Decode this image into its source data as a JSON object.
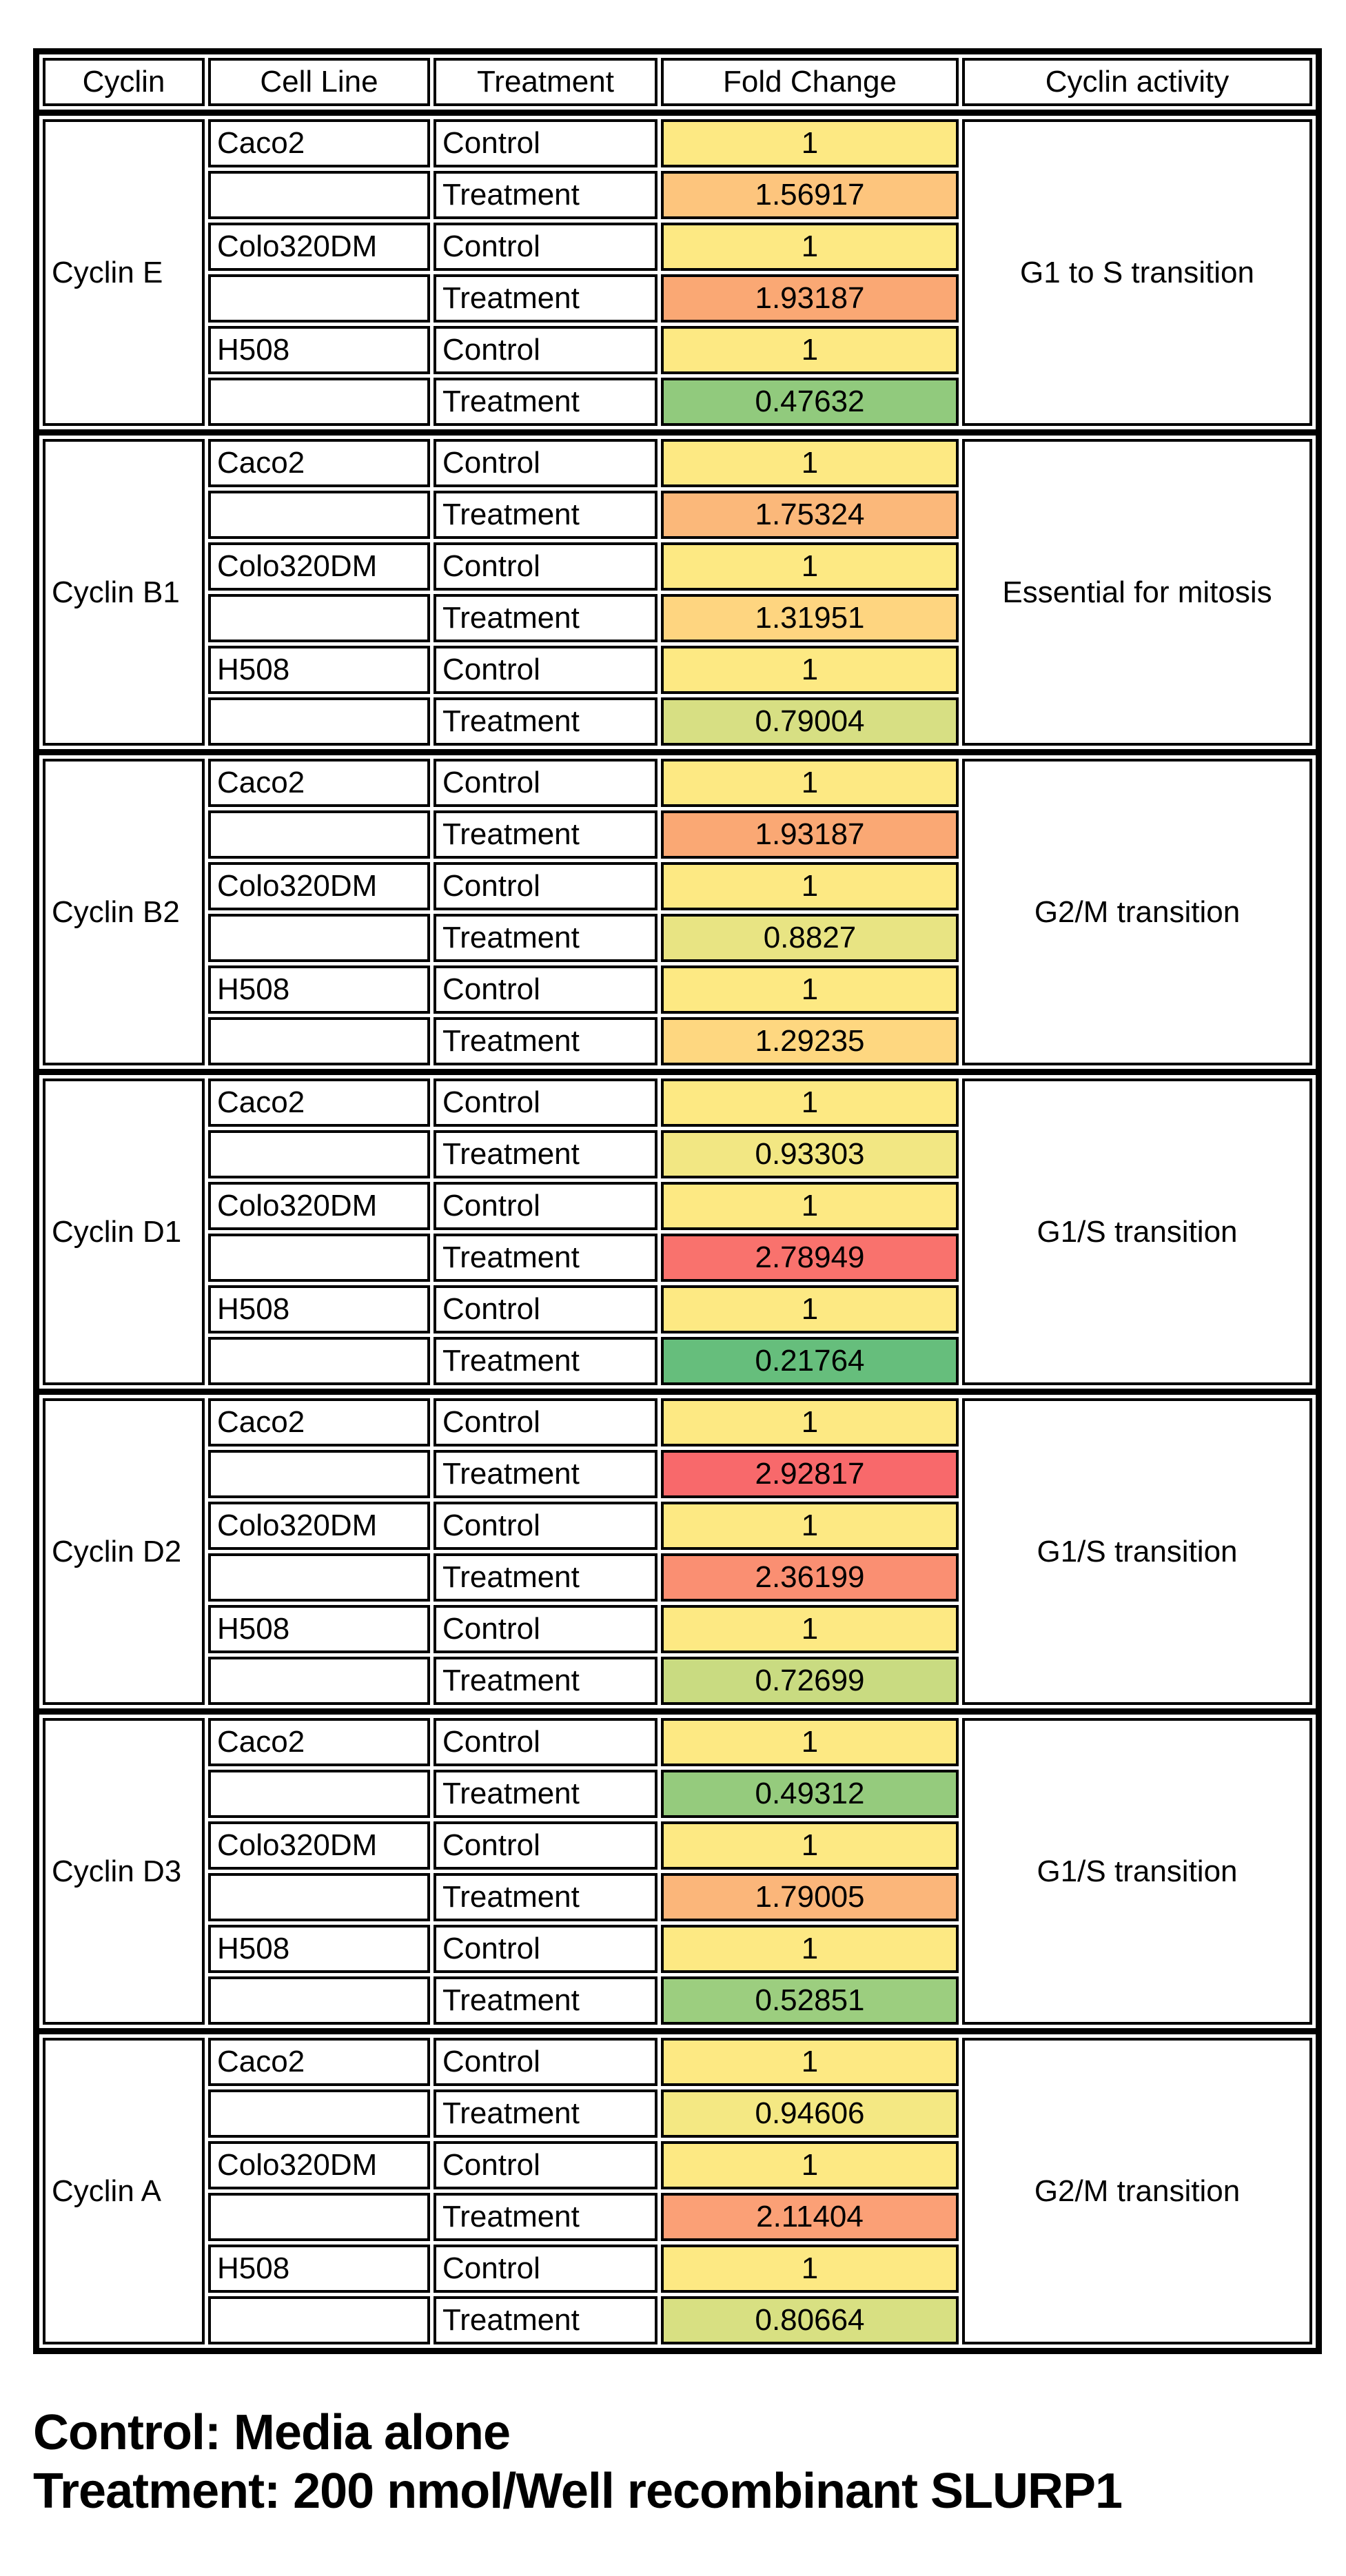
{
  "header": {
    "columns": [
      "Cyclin",
      "Cell Line",
      "Treatment",
      "Fold Change",
      "Cyclin activity"
    ]
  },
  "groups": [
    {
      "cyclin": "Cyclin E",
      "activity": "G1 to S transition",
      "rows": [
        {
          "cell_line": "Caco2",
          "treatment": "Control",
          "fold_change": "1",
          "color": "#FDE983"
        },
        {
          "cell_line": "",
          "treatment": "Treatment",
          "fold_change": "1.56917",
          "color": "#FDC57D"
        },
        {
          "cell_line": "Colo320DM",
          "treatment": "Control",
          "fold_change": "1",
          "color": "#FDE983"
        },
        {
          "cell_line": "",
          "treatment": "Treatment",
          "fold_change": "1.93187",
          "color": "#FAA874"
        },
        {
          "cell_line": "H508",
          "treatment": "Control",
          "fold_change": "1",
          "color": "#FDE983"
        },
        {
          "cell_line": "",
          "treatment": "Treatment",
          "fold_change": "0.47632",
          "color": "#91CA7D"
        }
      ]
    },
    {
      "cyclin": "Cyclin B1",
      "activity": "Essential for mitosis",
      "rows": [
        {
          "cell_line": "Caco2",
          "treatment": "Control",
          "fold_change": "1",
          "color": "#FDE983"
        },
        {
          "cell_line": "",
          "treatment": "Treatment",
          "fold_change": "1.75324",
          "color": "#FBB87A"
        },
        {
          "cell_line": "Colo320DM",
          "treatment": "Control",
          "fold_change": "1",
          "color": "#FDE983"
        },
        {
          "cell_line": "",
          "treatment": "Treatment",
          "fold_change": "1.31951",
          "color": "#FED580"
        },
        {
          "cell_line": "H508",
          "treatment": "Control",
          "fold_change": "1",
          "color": "#FDE983"
        },
        {
          "cell_line": "",
          "treatment": "Treatment",
          "fold_change": "0.79004",
          "color": "#D7DF83"
        }
      ]
    },
    {
      "cyclin": "Cyclin B2",
      "activity": "G2/M transition",
      "rows": [
        {
          "cell_line": "Caco2",
          "treatment": "Control",
          "fold_change": "1",
          "color": "#FDE983"
        },
        {
          "cell_line": "",
          "treatment": "Treatment",
          "fold_change": "1.93187",
          "color": "#FAA874"
        },
        {
          "cell_line": "Colo320DM",
          "treatment": "Control",
          "fold_change": "1",
          "color": "#FDE983"
        },
        {
          "cell_line": "",
          "treatment": "Treatment",
          "fold_change": "0.8827",
          "color": "#E8E483"
        },
        {
          "cell_line": "H508",
          "treatment": "Control",
          "fold_change": "1",
          "color": "#FDE983"
        },
        {
          "cell_line": "",
          "treatment": "Treatment",
          "fold_change": "1.29235",
          "color": "#FED780"
        }
      ]
    },
    {
      "cyclin": "Cyclin D1",
      "activity": "G1/S transition",
      "rows": [
        {
          "cell_line": "Caco2",
          "treatment": "Control",
          "fold_change": "1",
          "color": "#FDE983"
        },
        {
          "cell_line": "",
          "treatment": "Treatment",
          "fold_change": "0.93303",
          "color": "#F2E783"
        },
        {
          "cell_line": "Colo320DM",
          "treatment": "Control",
          "fold_change": "1",
          "color": "#FDE983"
        },
        {
          "cell_line": "",
          "treatment": "Treatment",
          "fold_change": "2.78949",
          "color": "#F9726D"
        },
        {
          "cell_line": "H508",
          "treatment": "Control",
          "fold_change": "1",
          "color": "#FDE983"
        },
        {
          "cell_line": "",
          "treatment": "Treatment",
          "fold_change": "0.21764",
          "color": "#66BE7C"
        }
      ]
    },
    {
      "cyclin": "Cyclin D2",
      "activity": "G1/S transition",
      "rows": [
        {
          "cell_line": "Caco2",
          "treatment": "Control",
          "fold_change": "1",
          "color": "#FDE983"
        },
        {
          "cell_line": "",
          "treatment": "Treatment",
          "fold_change": "2.92817",
          "color": "#F8696B"
        },
        {
          "cell_line": "Colo320DM",
          "treatment": "Control",
          "fold_change": "1",
          "color": "#FDE983"
        },
        {
          "cell_line": "",
          "treatment": "Treatment",
          "fold_change": "2.36199",
          "color": "#FA8F72"
        },
        {
          "cell_line": "H508",
          "treatment": "Control",
          "fold_change": "1",
          "color": "#FDE983"
        },
        {
          "cell_line": "",
          "treatment": "Treatment",
          "fold_change": "0.72699",
          "color": "#C9DB81"
        }
      ]
    },
    {
      "cyclin": "Cyclin D3",
      "activity": "G1/S transition",
      "rows": [
        {
          "cell_line": "Caco2",
          "treatment": "Control",
          "fold_change": "1",
          "color": "#FDE983"
        },
        {
          "cell_line": "",
          "treatment": "Treatment",
          "fold_change": "0.49312",
          "color": "#95CB7D"
        },
        {
          "cell_line": "Colo320DM",
          "treatment": "Control",
          "fold_change": "1",
          "color": "#FDE983"
        },
        {
          "cell_line": "",
          "treatment": "Treatment",
          "fold_change": "1.79005",
          "color": "#FBB67A"
        },
        {
          "cell_line": "H508",
          "treatment": "Control",
          "fold_change": "1",
          "color": "#FDE983"
        },
        {
          "cell_line": "",
          "treatment": "Treatment",
          "fold_change": "0.52851",
          "color": "#9CCE7F"
        }
      ]
    },
    {
      "cyclin": "Cyclin A",
      "activity": "G2/M transition",
      "rows": [
        {
          "cell_line": "Caco2",
          "treatment": "Control",
          "fold_change": "1",
          "color": "#FDE983"
        },
        {
          "cell_line": "",
          "treatment": "Treatment",
          "fold_change": "0.94606",
          "color": "#F4E883"
        },
        {
          "cell_line": "Colo320DM",
          "treatment": "Control",
          "fold_change": "1",
          "color": "#FDE983"
        },
        {
          "cell_line": "",
          "treatment": "Treatment",
          "fold_change": "2.11404",
          "color": "#FBA076"
        },
        {
          "cell_line": "H508",
          "treatment": "Control",
          "fold_change": "1",
          "color": "#FDE983"
        },
        {
          "cell_line": "",
          "treatment": "Treatment",
          "fold_change": "0.80664",
          "color": "#D8E082"
        }
      ]
    }
  ],
  "footnotes": [
    "Control: Media alone",
    "Treatment: 200 nmol/Well recombinant SLURP1"
  ],
  "chart_data": {
    "type": "table",
    "title": "",
    "columns": [
      "Cyclin",
      "Cell Line",
      "Treatment",
      "Fold Change",
      "Cyclin activity"
    ],
    "rows": [
      [
        "Cyclin E",
        "Caco2",
        "Control",
        1,
        "G1 to S transition"
      ],
      [
        "Cyclin E",
        "Caco2",
        "Treatment",
        1.56917,
        "G1 to S transition"
      ],
      [
        "Cyclin E",
        "Colo320DM",
        "Control",
        1,
        "G1 to S transition"
      ],
      [
        "Cyclin E",
        "Colo320DM",
        "Treatment",
        1.93187,
        "G1 to S transition"
      ],
      [
        "Cyclin E",
        "H508",
        "Control",
        1,
        "G1 to S transition"
      ],
      [
        "Cyclin E",
        "H508",
        "Treatment",
        0.47632,
        "G1 to S transition"
      ],
      [
        "Cyclin B1",
        "Caco2",
        "Control",
        1,
        "Essential for mitosis"
      ],
      [
        "Cyclin B1",
        "Caco2",
        "Treatment",
        1.75324,
        "Essential for mitosis"
      ],
      [
        "Cyclin B1",
        "Colo320DM",
        "Control",
        1,
        "Essential for mitosis"
      ],
      [
        "Cyclin B1",
        "Colo320DM",
        "Treatment",
        1.31951,
        "Essential for mitosis"
      ],
      [
        "Cyclin B1",
        "H508",
        "Control",
        1,
        "Essential for mitosis"
      ],
      [
        "Cyclin B1",
        "H508",
        "Treatment",
        0.79004,
        "Essential for mitosis"
      ],
      [
        "Cyclin B2",
        "Caco2",
        "Control",
        1,
        "G2/M transition"
      ],
      [
        "Cyclin B2",
        "Caco2",
        "Treatment",
        1.93187,
        "G2/M transition"
      ],
      [
        "Cyclin B2",
        "Colo320DM",
        "Control",
        1,
        "G2/M transition"
      ],
      [
        "Cyclin B2",
        "Colo320DM",
        "Treatment",
        0.8827,
        "G2/M transition"
      ],
      [
        "Cyclin B2",
        "H508",
        "Control",
        1,
        "G2/M transition"
      ],
      [
        "Cyclin B2",
        "H508",
        "Treatment",
        1.29235,
        "G2/M transition"
      ],
      [
        "Cyclin D1",
        "Caco2",
        "Control",
        1,
        "G1/S transition"
      ],
      [
        "Cyclin D1",
        "Caco2",
        "Treatment",
        0.93303,
        "G1/S transition"
      ],
      [
        "Cyclin D1",
        "Colo320DM",
        "Control",
        1,
        "G1/S transition"
      ],
      [
        "Cyclin D1",
        "Colo320DM",
        "Treatment",
        2.78949,
        "G1/S transition"
      ],
      [
        "Cyclin D1",
        "H508",
        "Control",
        1,
        "G1/S transition"
      ],
      [
        "Cyclin D1",
        "H508",
        "Treatment",
        0.21764,
        "G1/S transition"
      ],
      [
        "Cyclin D2",
        "Caco2",
        "Control",
        1,
        "G1/S transition"
      ],
      [
        "Cyclin D2",
        "Caco2",
        "Treatment",
        2.92817,
        "G1/S transition"
      ],
      [
        "Cyclin D2",
        "Colo320DM",
        "Control",
        1,
        "G1/S transition"
      ],
      [
        "Cyclin D2",
        "Colo320DM",
        "Treatment",
        2.36199,
        "G1/S transition"
      ],
      [
        "Cyclin D2",
        "H508",
        "Control",
        1,
        "G1/S transition"
      ],
      [
        "Cyclin D2",
        "H508",
        "Treatment",
        0.72699,
        "G1/S transition"
      ],
      [
        "Cyclin D3",
        "Caco2",
        "Control",
        1,
        "G1/S transition"
      ],
      [
        "Cyclin D3",
        "Caco2",
        "Treatment",
        0.49312,
        "G1/S transition"
      ],
      [
        "Cyclin D3",
        "Colo320DM",
        "Control",
        1,
        "G1/S transition"
      ],
      [
        "Cyclin D3",
        "Colo320DM",
        "Treatment",
        1.79005,
        "G1/S transition"
      ],
      [
        "Cyclin D3",
        "H508",
        "Control",
        1,
        "G1/S transition"
      ],
      [
        "Cyclin D3",
        "H508",
        "Treatment",
        0.52851,
        "G1/S transition"
      ],
      [
        "Cyclin A",
        "Caco2",
        "Control",
        1,
        "G2/M transition"
      ],
      [
        "Cyclin A",
        "Caco2",
        "Treatment",
        0.94606,
        "G2/M transition"
      ],
      [
        "Cyclin A",
        "Colo320DM",
        "Control",
        1,
        "G2/M transition"
      ],
      [
        "Cyclin A",
        "Colo320DM",
        "Treatment",
        2.11404,
        "G2/M transition"
      ],
      [
        "Cyclin A",
        "H508",
        "Control",
        1,
        "G2/M transition"
      ],
      [
        "Cyclin A",
        "H508",
        "Treatment",
        0.80664,
        "G2/M transition"
      ]
    ],
    "color_scale": {
      "type": "3-color",
      "min_value": 0.21764,
      "min_color": "#63BE7B",
      "mid_value": 1,
      "mid_color": "#FDE983",
      "max_value": 2.92817,
      "max_color": "#F8696B"
    },
    "annotations": [
      "Control: Media alone",
      "Treatment: 200 nmol/Well recombinant SLURP1"
    ]
  }
}
